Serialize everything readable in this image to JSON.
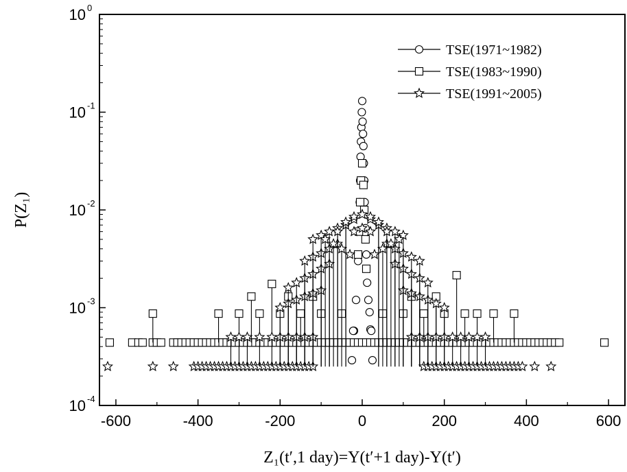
{
  "chart_data": {
    "type": "scatter",
    "title": "",
    "xlabel": "Z₁(t′,1 day)=Y(t′+1 day)-Y(t′)",
    "ylabel": "P(Z₁)",
    "xlim": [
      -640,
      640
    ],
    "ylim": [
      0.0001,
      1
    ],
    "yscale": "log",
    "grid": false,
    "legend_position": "top-right",
    "x_ticks": [
      -600,
      -400,
      -200,
      0,
      200,
      400,
      600
    ],
    "x_tick_labels": [
      "-600",
      "-400",
      "-200",
      "0",
      "200",
      "400",
      "600"
    ],
    "y_ticks": [
      0.0001,
      0.001,
      0.01,
      0.1,
      1
    ],
    "y_tick_bases": [
      "10",
      "10",
      "10",
      "10",
      "10"
    ],
    "y_tick_exponents": [
      "-4",
      "-3",
      "-2",
      "-1",
      "0"
    ],
    "series": [
      {
        "name": "TSE(1971~1982)",
        "marker": "circle",
        "x": [
          -20,
          -15,
          -10,
          -8,
          -6,
          -5,
          -4,
          -3,
          -2,
          -1,
          0,
          1,
          2,
          3,
          4,
          5,
          6,
          8,
          10,
          12,
          15,
          18,
          20,
          -25,
          25,
          -22,
          22
        ],
        "y": [
          0.00058,
          0.0012,
          0.003,
          0.006,
          0.012,
          0.02,
          0.035,
          0.05,
          0.07,
          0.1,
          0.13,
          0.08,
          0.06,
          0.045,
          0.03,
          0.02,
          0.012,
          0.0065,
          0.0035,
          0.0018,
          0.0012,
          0.0009,
          0.0006,
          0.00029,
          0.00029,
          0.00058,
          0.00058
        ]
      },
      {
        "name": "TSE(1983~1990)",
        "marker": "square",
        "x": [
          -615,
          -560,
          -545,
          -535,
          -510,
          -500,
          -490,
          -460,
          -450,
          -440,
          -430,
          -420,
          -410,
          -400,
          -390,
          -380,
          -370,
          -360,
          -350,
          -340,
          -330,
          -320,
          -310,
          -300,
          -290,
          -280,
          -270,
          -260,
          -250,
          -240,
          -230,
          -220,
          -210,
          -200,
          -190,
          -180,
          -170,
          -160,
          -150,
          -140,
          -130,
          -120,
          -110,
          -100,
          -90,
          -80,
          -70,
          -60,
          -50,
          -40,
          -30,
          -20,
          -10,
          0,
          10,
          20,
          30,
          40,
          50,
          60,
          70,
          80,
          90,
          100,
          110,
          120,
          130,
          140,
          150,
          160,
          170,
          180,
          190,
          200,
          210,
          220,
          230,
          240,
          250,
          260,
          270,
          280,
          290,
          300,
          310,
          320,
          330,
          340,
          350,
          360,
          370,
          380,
          390,
          400,
          410,
          420,
          430,
          440,
          450,
          460,
          470,
          480,
          590,
          -510,
          -350,
          -300,
          -250,
          -200,
          -150,
          -100,
          -50,
          50,
          100,
          150,
          200,
          250,
          280,
          320,
          370,
          -270,
          -220,
          -180,
          -120,
          120,
          180,
          230,
          -10,
          -8,
          -5,
          -3,
          0,
          3,
          5,
          8,
          10
        ],
        "y": [
          0.00044,
          0.00044,
          0.00044,
          0.00044,
          0.00044,
          0.00044,
          0.00044,
          0.00044,
          0.00044,
          0.00044,
          0.00044,
          0.00044,
          0.00044,
          0.00044,
          0.00044,
          0.00044,
          0.00044,
          0.00044,
          0.00044,
          0.00044,
          0.00044,
          0.00044,
          0.00044,
          0.00044,
          0.00044,
          0.00044,
          0.00044,
          0.00044,
          0.00044,
          0.00044,
          0.00044,
          0.00044,
          0.00044,
          0.00044,
          0.00044,
          0.00044,
          0.00044,
          0.00044,
          0.00044,
          0.00044,
          0.00044,
          0.00044,
          0.00044,
          0.00044,
          0.00044,
          0.00044,
          0.00044,
          0.00044,
          0.00044,
          0.00044,
          0.00044,
          0.00044,
          0.00044,
          0.00044,
          0.00044,
          0.00044,
          0.00044,
          0.00044,
          0.00044,
          0.00044,
          0.00044,
          0.00044,
          0.00044,
          0.00044,
          0.00044,
          0.00044,
          0.00044,
          0.00044,
          0.00044,
          0.00044,
          0.00044,
          0.00044,
          0.00044,
          0.00044,
          0.00044,
          0.00044,
          0.00044,
          0.00044,
          0.00044,
          0.00044,
          0.00044,
          0.00044,
          0.00044,
          0.00044,
          0.00044,
          0.00044,
          0.00044,
          0.00044,
          0.00044,
          0.00044,
          0.00044,
          0.00044,
          0.00044,
          0.00044,
          0.00044,
          0.00044,
          0.00044,
          0.00044,
          0.00044,
          0.00044,
          0.00044,
          0.00044,
          0.00044,
          0.00087,
          0.00087,
          0.00087,
          0.00087,
          0.00087,
          0.00087,
          0.00087,
          0.00087,
          0.00087,
          0.00087,
          0.00087,
          0.00087,
          0.00087,
          0.00087,
          0.00087,
          0.00087,
          0.0013,
          0.00175,
          0.0013,
          0.0013,
          0.0013,
          0.0013,
          0.00215,
          0.0035,
          0.006,
          0.012,
          0.02,
          0.03,
          0.018,
          0.01,
          0.005,
          0.0025
        ]
      },
      {
        "name": "TSE(1991~2005)",
        "marker": "star",
        "x": [
          -620,
          -510,
          -460,
          -410,
          -400,
          -390,
          -380,
          -370,
          -360,
          -350,
          -340,
          -330,
          -320,
          -310,
          -300,
          -290,
          -280,
          -270,
          -260,
          -250,
          -240,
          -230,
          -220,
          -210,
          -200,
          -190,
          -180,
          -170,
          -160,
          -150,
          -140,
          -130,
          -120,
          150,
          160,
          170,
          180,
          190,
          200,
          210,
          220,
          230,
          240,
          250,
          260,
          270,
          280,
          290,
          300,
          310,
          320,
          330,
          340,
          350,
          360,
          370,
          380,
          390,
          420,
          460,
          -320,
          -300,
          -280,
          -250,
          -220,
          -200,
          -180,
          -160,
          -140,
          -120,
          120,
          140,
          160,
          180,
          200,
          220,
          240,
          260,
          280,
          300,
          -200,
          -180,
          -160,
          -140,
          -120,
          -100,
          100,
          120,
          140,
          160,
          180,
          200,
          -180,
          -160,
          -140,
          -120,
          -100,
          -80,
          80,
          100,
          120,
          140,
          160,
          -140,
          -120,
          -100,
          -80,
          -60,
          60,
          80,
          100,
          120,
          140,
          -120,
          -100,
          -80,
          -60,
          -40,
          40,
          60,
          80,
          100,
          -90,
          -70,
          -50,
          -30,
          30,
          50,
          70,
          90,
          -60,
          -40,
          -20,
          20,
          40,
          60,
          -40,
          -20,
          0,
          20,
          40,
          -20,
          0,
          20
        ],
        "y": [
          0.00025,
          0.00025,
          0.00025,
          0.00025,
          0.00025,
          0.00025,
          0.00025,
          0.00025,
          0.00025,
          0.00025,
          0.00025,
          0.00025,
          0.00025,
          0.00025,
          0.00025,
          0.00025,
          0.00025,
          0.00025,
          0.00025,
          0.00025,
          0.00025,
          0.00025,
          0.00025,
          0.00025,
          0.00025,
          0.00025,
          0.00025,
          0.00025,
          0.00025,
          0.00025,
          0.00025,
          0.00025,
          0.00025,
          0.00025,
          0.00025,
          0.00025,
          0.00025,
          0.00025,
          0.00025,
          0.00025,
          0.00025,
          0.00025,
          0.00025,
          0.00025,
          0.00025,
          0.00025,
          0.00025,
          0.00025,
          0.00025,
          0.00025,
          0.00025,
          0.00025,
          0.00025,
          0.00025,
          0.00025,
          0.00025,
          0.00025,
          0.00025,
          0.00025,
          0.00025,
          0.0005,
          0.0005,
          0.0005,
          0.0005,
          0.0005,
          0.0005,
          0.0005,
          0.0005,
          0.0005,
          0.0005,
          0.0005,
          0.0005,
          0.0005,
          0.0005,
          0.0005,
          0.0005,
          0.0005,
          0.0005,
          0.0005,
          0.0005,
          0.001,
          0.0011,
          0.0012,
          0.0013,
          0.0014,
          0.0015,
          0.0015,
          0.0014,
          0.0013,
          0.0012,
          0.0011,
          0.001,
          0.0016,
          0.0018,
          0.002,
          0.0022,
          0.0025,
          0.0028,
          0.0028,
          0.0025,
          0.0022,
          0.002,
          0.0018,
          0.003,
          0.0033,
          0.0036,
          0.004,
          0.0045,
          0.0045,
          0.004,
          0.0036,
          0.0033,
          0.003,
          0.005,
          0.0055,
          0.006,
          0.0065,
          0.007,
          0.007,
          0.0065,
          0.006,
          0.0055,
          0.005,
          0.0045,
          0.004,
          0.0035,
          0.0035,
          0.004,
          0.0045,
          0.005,
          0.006,
          0.007,
          0.008,
          0.008,
          0.007,
          0.006,
          0.0075,
          0.0085,
          0.009,
          0.0085,
          0.0075,
          0.006,
          0.0065,
          0.006
        ]
      }
    ]
  }
}
